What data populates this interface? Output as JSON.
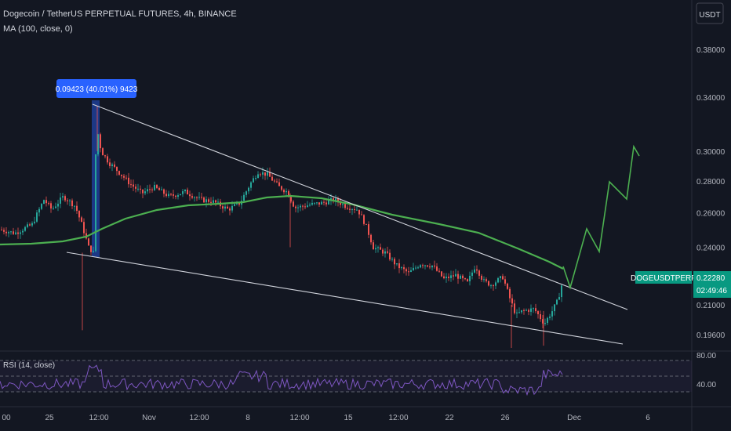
{
  "header": {
    "title": "Dogecoin / TetherUS PERPETUAL FUTURES, 4h, BINANCE",
    "indicator": "MA (100, close, 0)",
    "currency": "USDT"
  },
  "annotation": {
    "measure_label": "0.09423 (40.01%) 9423"
  },
  "price_tag": {
    "symbol": "DOGEUSDTPERP",
    "price": "0.22280",
    "countdown": "02:49:46"
  },
  "rsi": {
    "label": "RSI (14, close)",
    "ticks": [
      "80.00",
      "40.00"
    ]
  },
  "colors": {
    "background": "#131722",
    "bull": "#26a69a",
    "bear": "#ef5350",
    "ma": "#4caf50",
    "rsi": "#7e57c2",
    "trendline": "#d1d4dc",
    "projection": "#4caf50",
    "tag": "#089981",
    "measure": "#2962ff"
  },
  "chart_data": {
    "type": "candlestick",
    "price_axis": {
      "ticks": [
        "0.38000",
        "0.34000",
        "0.30000",
        "0.28000",
        "0.26000",
        "0.24000",
        "0.22280",
        "0.21000",
        "0.19600"
      ],
      "scale": "log"
    },
    "time_axis": {
      "ticks": [
        "00",
        "25",
        "12:00",
        "Nov",
        "12:00",
        "8",
        "12:00",
        "15",
        "12:00",
        "22",
        "26",
        "Dec",
        "6"
      ]
    },
    "last_price": 0.2228,
    "highlight": {
      "low": 0.2355,
      "high": 0.3297,
      "change": "0.09423 (40.01%) 9423"
    }
  }
}
